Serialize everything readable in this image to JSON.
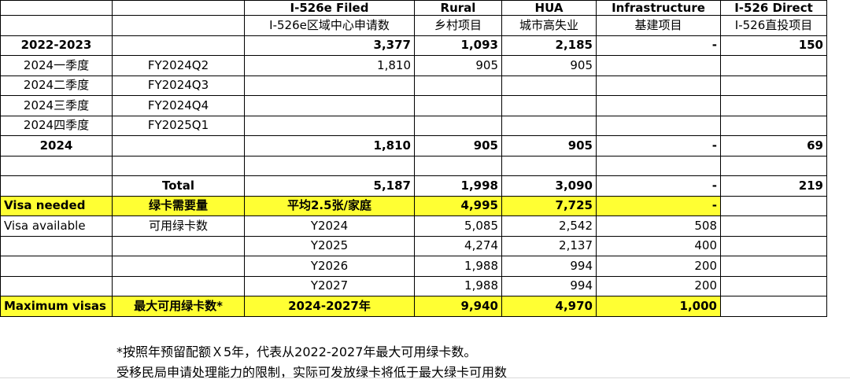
{
  "header": {
    "row1": [
      "",
      "",
      "I-526e Filed",
      "Rural",
      "HUA",
      "Infrastructure",
      "I-526 Direct"
    ],
    "row2": [
      "",
      "",
      "I-526e区域中心申请数",
      "乡村项目",
      "城市高失业",
      "基建项目",
      "I-526直投项目"
    ]
  },
  "rows": {
    "fy2223": [
      "2022-2023",
      "",
      "3,377",
      "1,093",
      "2,185",
      "-",
      "150"
    ],
    "q1": [
      "2024一季度",
      "FY2024Q2",
      "1,810",
      "905",
      "905",
      "",
      ""
    ],
    "q2": [
      "2024二季度",
      "FY2024Q3",
      "",
      "",
      "",
      "",
      ""
    ],
    "q3": [
      "2024三季度",
      "FY2024Q4",
      "",
      "",
      "",
      "",
      ""
    ],
    "q4": [
      "2024四季度",
      "FY2025Q1",
      "",
      "",
      "",
      "",
      ""
    ],
    "y2024": [
      "2024",
      "",
      "1,810",
      "905",
      "905",
      "-",
      "69"
    ],
    "blank": [
      "",
      "",
      "",
      "",
      "",
      "",
      ""
    ],
    "total": [
      "",
      "Total",
      "5,187",
      "1,998",
      "3,090",
      "-",
      "219"
    ],
    "visa_needed": [
      "Visa needed",
      "绿卡需要量",
      "平均2.5张/家庭",
      "4,995",
      "7,725",
      "-",
      ""
    ],
    "visa_avail": [
      "Visa available",
      "可用绿卡数",
      "Y2024",
      "5,085",
      "2,542",
      "508",
      ""
    ],
    "y2025": [
      "",
      "",
      "Y2025",
      "4,274",
      "2,137",
      "400",
      ""
    ],
    "y2026": [
      "",
      "",
      "Y2026",
      "1,988",
      "994",
      "200",
      ""
    ],
    "y2027": [
      "",
      "",
      "Y2027",
      "1,988",
      "994",
      "200",
      ""
    ],
    "max_visas": [
      "Maximum visas",
      "最大可用绿卡数*",
      "2024-2027年",
      "9,940",
      "4,970",
      "1,000",
      ""
    ]
  },
  "notes": {
    "line1": "*按照年预留配额Ｘ5年，代表从2022-2027年最大可用绿卡数。",
    "line2": "受移民局申请处理能力的限制，实际可发放绿卡将低于最大绿卡可用数"
  }
}
